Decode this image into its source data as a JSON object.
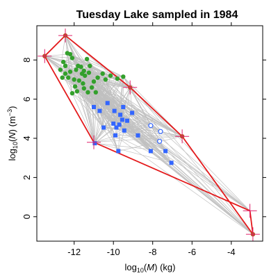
{
  "chart_data": {
    "type": "scatter",
    "title": "Tuesday Lake sampled in 1984",
    "xlabel": {
      "prefix": "log",
      "sub": "10",
      "open": "(",
      "var": "M",
      "close": ")",
      "unit": " (kg)"
    },
    "ylabel": {
      "prefix": "log",
      "sub": "10",
      "open": "(",
      "var": "N",
      "close": ")",
      "unit_open": " (m",
      "sup": "−3",
      "unit_close": ")"
    },
    "xlim": [
      -13.9,
      -2.4
    ],
    "ylim": [
      -1.25,
      9.75
    ],
    "xticks": [
      -12,
      -10,
      -8,
      -6,
      -4
    ],
    "xtick_labels": [
      "-12",
      "-10",
      "-8",
      "-6",
      "-4"
    ],
    "yticks": [
      0,
      2,
      4,
      6,
      8
    ],
    "ytick_labels": [
      "0",
      "2",
      "4",
      "6",
      "8"
    ],
    "colors": {
      "web_links": "#c0c0c0",
      "hull": "#e41a1c",
      "phytoplankton": "#33a02c",
      "zooplankton": "#3366ff",
      "hull_marker": "#b3541e",
      "cross": "#e0206a",
      "frame": "#000000"
    },
    "series": [
      {
        "marker": "circle-filled",
        "color": "#33a02c",
        "points": [
          [
            -12.2,
            8.3
          ],
          [
            -12.35,
            8.35
          ],
          [
            -12.1,
            8.1
          ],
          [
            -11.9,
            7.5
          ],
          [
            -12.55,
            7.9
          ],
          [
            -12.45,
            7.7
          ],
          [
            -12.7,
            7.5
          ],
          [
            -12.2,
            7.4
          ],
          [
            -11.8,
            7.7
          ],
          [
            -11.65,
            7.65
          ],
          [
            -11.45,
            7.2
          ],
          [
            -11.2,
            7.7
          ],
          [
            -11.35,
            8.05
          ],
          [
            -11.6,
            7.3
          ],
          [
            -11.5,
            7.45
          ],
          [
            -11.25,
            7.35
          ],
          [
            -12.0,
            7.0
          ],
          [
            -11.75,
            6.95
          ],
          [
            -11.55,
            6.8
          ],
          [
            -12.3,
            7.1
          ],
          [
            -12.45,
            7.3
          ],
          [
            -12.6,
            7.1
          ],
          [
            -11.85,
            6.4
          ],
          [
            -11.95,
            6.65
          ],
          [
            -11.5,
            6.55
          ],
          [
            -11.3,
            6.35
          ],
          [
            -11.1,
            6.6
          ],
          [
            -10.9,
            6.35
          ],
          [
            -10.8,
            7.1
          ],
          [
            -10.55,
            7.3
          ],
          [
            -10.4,
            7.0
          ],
          [
            -10.15,
            7.2
          ],
          [
            -9.8,
            7.05
          ],
          [
            -12.1,
            6.3
          ],
          [
            -9.5,
            7.15
          ],
          [
            -11.0,
            6.9
          ]
        ]
      },
      {
        "marker": "square-filled",
        "color": "#3366ff",
        "points": [
          [
            -11.0,
            5.6
          ],
          [
            -10.7,
            5.4
          ],
          [
            -10.3,
            5.8
          ],
          [
            -9.95,
            5.4
          ],
          [
            -9.5,
            5.6
          ],
          [
            -9.65,
            5.2
          ],
          [
            -9.05,
            5.3
          ],
          [
            -9.3,
            4.9
          ],
          [
            -10.0,
            4.75
          ],
          [
            -9.85,
            4.55
          ],
          [
            -9.7,
            4.7
          ],
          [
            -10.5,
            4.55
          ],
          [
            -9.9,
            4.15
          ],
          [
            -9.45,
            4.4
          ],
          [
            -8.75,
            4.15
          ],
          [
            -8.1,
            3.35
          ],
          [
            -7.35,
            3.35
          ],
          [
            -7.05,
            2.75
          ],
          [
            -9.75,
            3.35
          ],
          [
            -10.95,
            3.75
          ],
          [
            -9.55,
            4.95
          ]
        ]
      },
      {
        "marker": "circle-open",
        "color": "#3366ff",
        "points": [
          [
            -8.1,
            4.65
          ],
          [
            -7.6,
            4.35
          ],
          [
            -7.65,
            3.85
          ]
        ]
      }
    ],
    "hull": [
      [
        -12.45,
        9.25
      ],
      [
        -9.15,
        6.6
      ],
      [
        -6.5,
        4.1
      ],
      [
        -2.9,
        -0.9
      ],
      [
        -3.05,
        0.3
      ],
      [
        -11.0,
        3.8
      ],
      [
        -13.5,
        8.2
      ]
    ],
    "hull_marker": [
      [
        -12.45,
        9.25
      ],
      [
        -13.5,
        8.2
      ],
      [
        -9.15,
        6.6
      ],
      [
        -6.5,
        4.1
      ],
      [
        -2.9,
        -0.9
      ]
    ],
    "crosses": [
      [
        -12.45,
        9.25
      ],
      [
        -13.5,
        8.2
      ],
      [
        -9.15,
        6.6
      ],
      [
        -6.5,
        4.1
      ],
      [
        -11.0,
        3.8
      ],
      [
        -3.05,
        0.3
      ],
      [
        -2.9,
        -0.9
      ]
    ],
    "grid": false,
    "legend": "none"
  }
}
